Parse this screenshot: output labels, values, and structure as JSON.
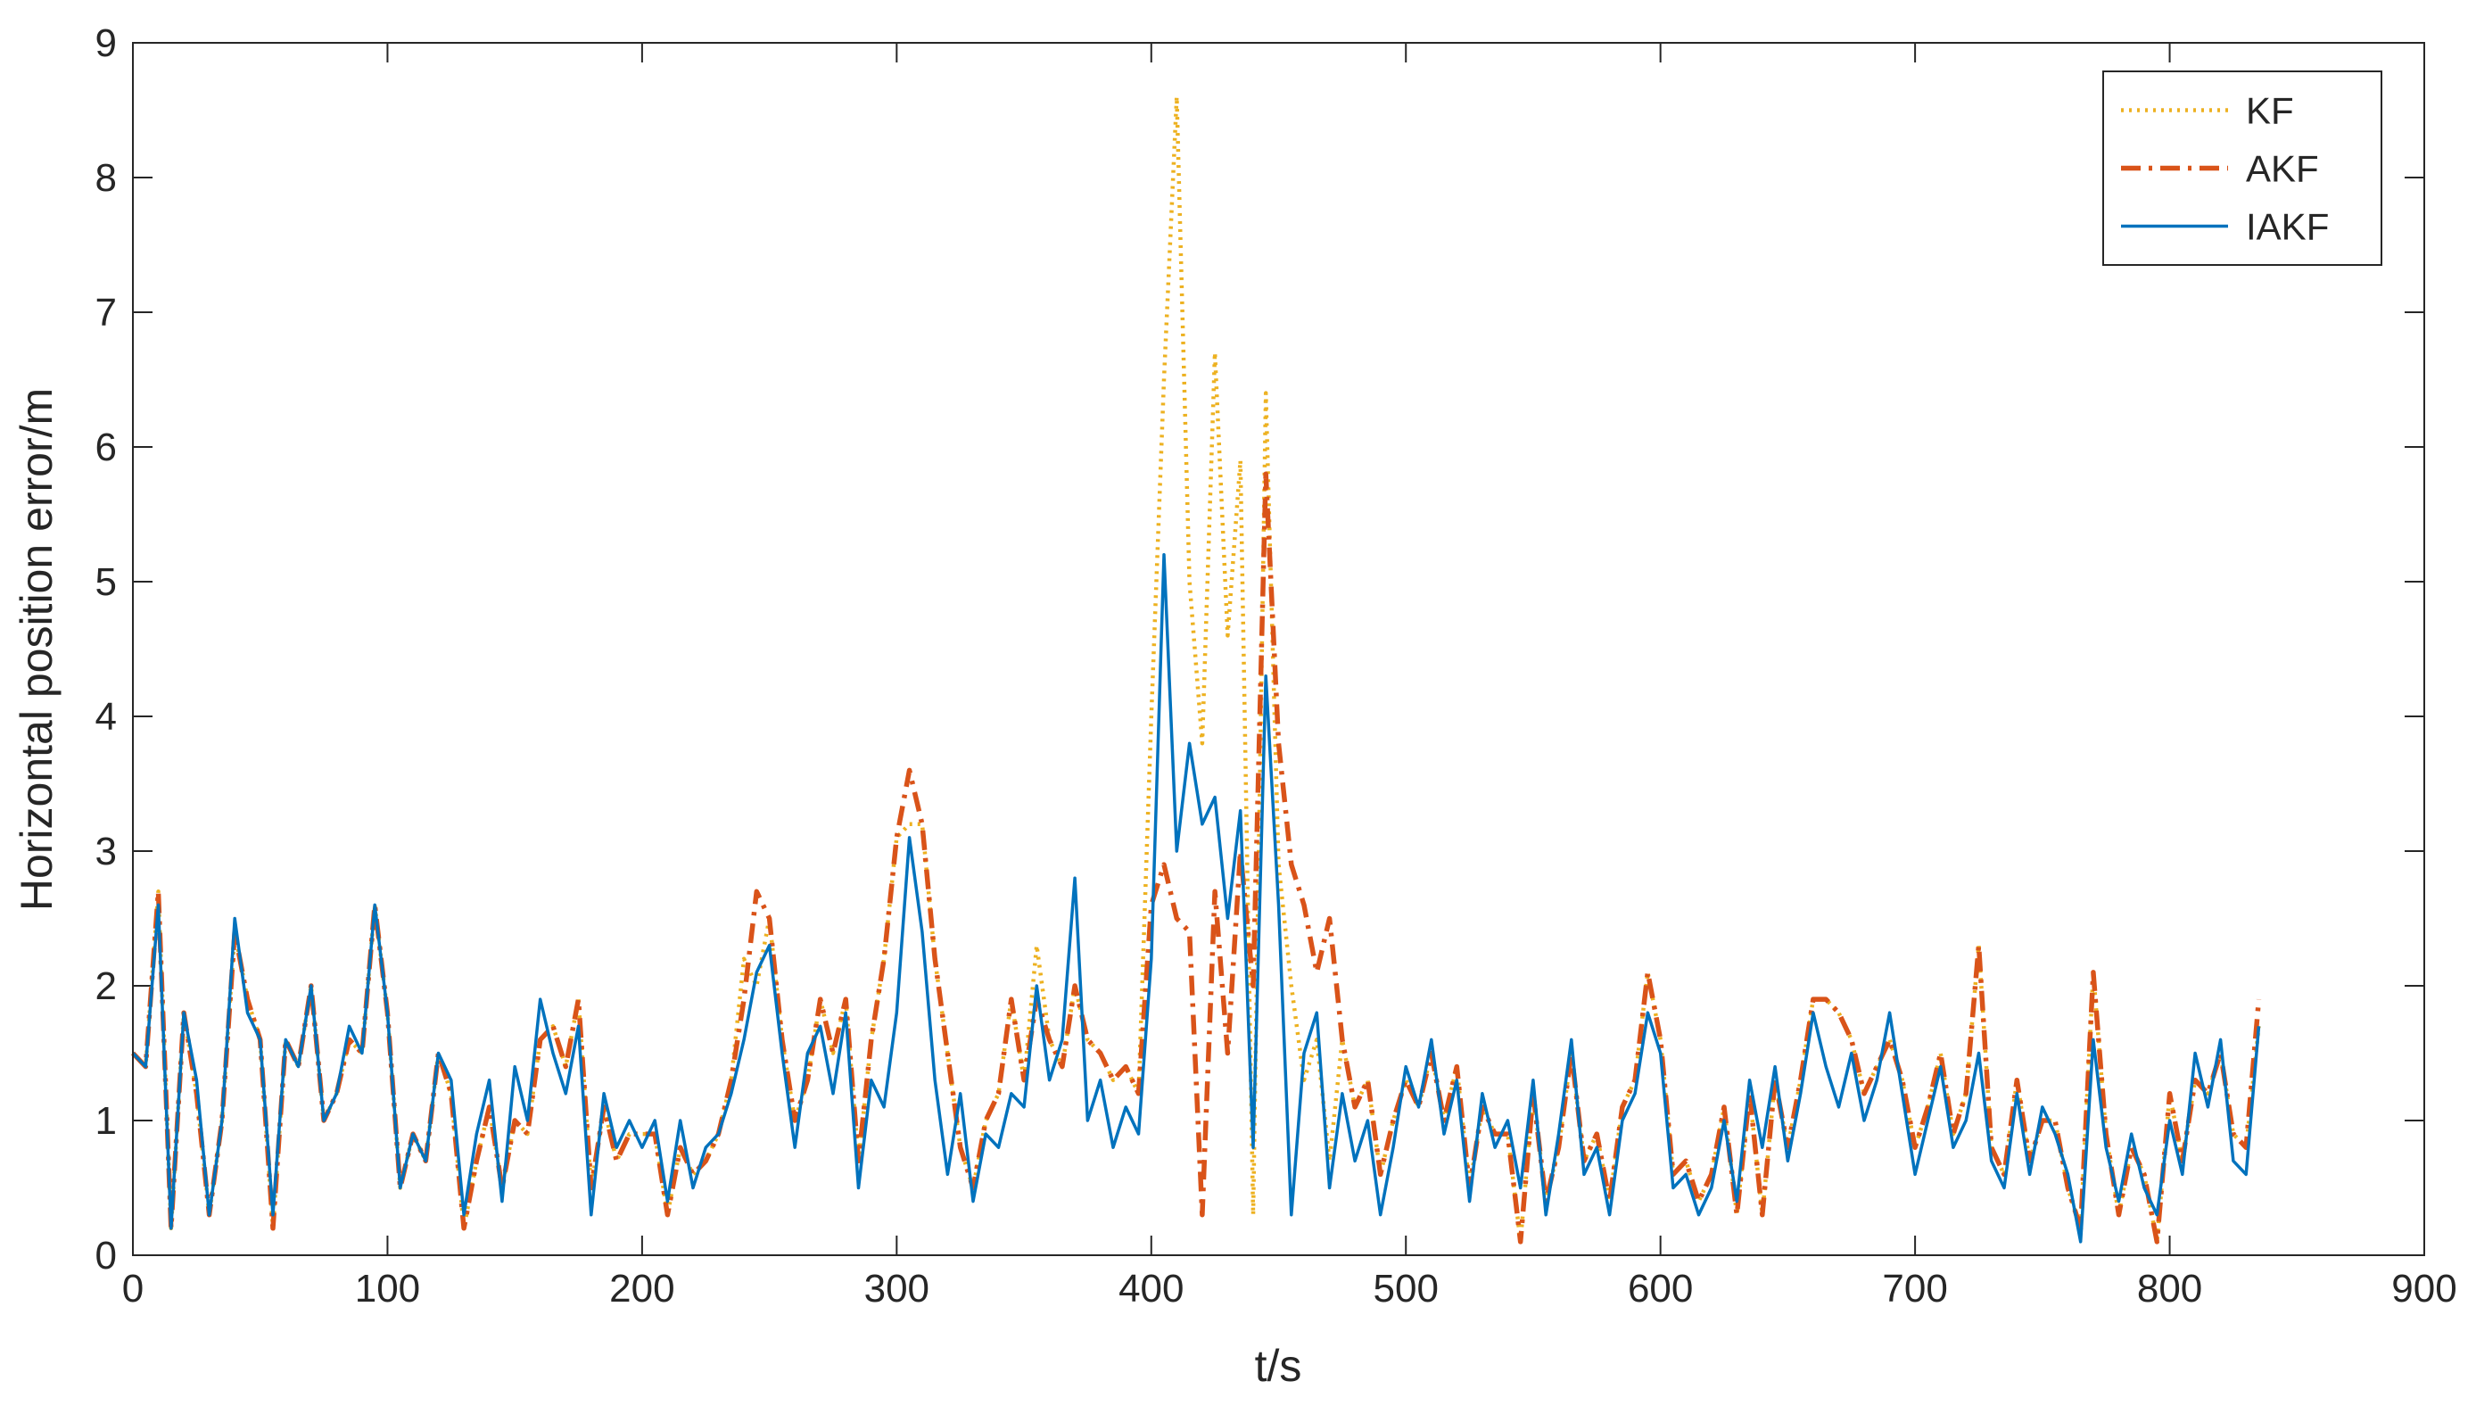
{
  "chart_data": {
    "type": "line",
    "xlabel": "t/s",
    "ylabel": "Horizontal position error/m",
    "xlim": [
      0,
      900
    ],
    "ylim": [
      0,
      9
    ],
    "xticks": [
      0,
      100,
      200,
      300,
      400,
      500,
      600,
      700,
      800,
      900
    ],
    "yticks": [
      0,
      1,
      2,
      3,
      4,
      5,
      6,
      7,
      8,
      9
    ],
    "legend": "top-right",
    "x": [
      0,
      5,
      10,
      15,
      20,
      25,
      30,
      35,
      40,
      45,
      50,
      55,
      60,
      65,
      70,
      75,
      80,
      85,
      90,
      95,
      100,
      105,
      110,
      115,
      120,
      125,
      130,
      135,
      140,
      145,
      150,
      155,
      160,
      165,
      170,
      175,
      180,
      185,
      190,
      195,
      200,
      205,
      210,
      215,
      220,
      225,
      230,
      235,
      240,
      245,
      250,
      255,
      260,
      265,
      270,
      275,
      280,
      285,
      290,
      295,
      300,
      305,
      310,
      315,
      320,
      325,
      330,
      335,
      340,
      345,
      350,
      355,
      360,
      365,
      370,
      375,
      380,
      385,
      390,
      395,
      400,
      405,
      410,
      415,
      420,
      425,
      430,
      435,
      440,
      445,
      450,
      455,
      460,
      465,
      470,
      475,
      480,
      485,
      490,
      495,
      500,
      505,
      510,
      515,
      520,
      525,
      530,
      535,
      540,
      545,
      550,
      555,
      560,
      565,
      570,
      575,
      580,
      585,
      590,
      595,
      600,
      605,
      610,
      615,
      620,
      625,
      630,
      635,
      640,
      645,
      650,
      655,
      660,
      665,
      670,
      675,
      680,
      685,
      690,
      695,
      700,
      705,
      710,
      715,
      720,
      725,
      730,
      735,
      740,
      745,
      750,
      755,
      760,
      765,
      770,
      775,
      780,
      785,
      790,
      795,
      800,
      805,
      810,
      815,
      820,
      825,
      830,
      835
    ],
    "series": [
      {
        "name": "KF",
        "color": "#EDB120",
        "style": "dotted",
        "values": [
          1.5,
          1.4,
          2.7,
          0.2,
          1.8,
          1.2,
          0.3,
          1.0,
          2.4,
          1.9,
          1.6,
          0.2,
          1.6,
          1.4,
          2.0,
          1.0,
          1.2,
          1.6,
          1.5,
          2.6,
          1.8,
          0.5,
          0.9,
          0.7,
          1.5,
          1.2,
          0.2,
          0.7,
          1.1,
          0.5,
          1.0,
          0.9,
          1.6,
          1.7,
          1.4,
          1.9,
          0.5,
          1.1,
          0.7,
          0.9,
          0.9,
          0.9,
          0.3,
          0.8,
          0.6,
          0.7,
          0.9,
          1.3,
          2.2,
          2.0,
          2.5,
          1.6,
          1.0,
          1.3,
          1.9,
          1.5,
          1.9,
          0.7,
          1.6,
          2.2,
          3.1,
          3.2,
          3.2,
          2.2,
          1.5,
          0.8,
          0.5,
          1.0,
          1.2,
          1.9,
          1.3,
          2.3,
          1.6,
          1.4,
          2.0,
          1.6,
          1.5,
          1.3,
          1.4,
          1.2,
          4.0,
          6.5,
          8.6,
          5.0,
          3.8,
          6.7,
          4.6,
          5.9,
          0.3,
          6.4,
          2.9,
          2.0,
          1.3,
          1.6,
          0.7,
          1.6,
          1.1,
          1.3,
          0.6,
          1.0,
          1.3,
          1.1,
          1.5,
          1.0,
          1.4,
          0.5,
          1.1,
          0.9,
          0.9,
          0.1,
          1.2,
          0.4,
          0.8,
          1.5,
          0.7,
          0.9,
          0.4,
          1.1,
          1.3,
          2.1,
          1.6,
          0.6,
          0.7,
          0.4,
          0.6,
          1.1,
          0.3,
          1.2,
          0.3,
          1.3,
          0.8,
          1.3,
          1.9,
          1.9,
          1.8,
          1.6,
          1.2,
          1.4,
          1.6,
          1.3,
          0.8,
          1.1,
          1.5,
          0.9,
          1.2,
          2.3,
          0.8,
          0.6,
          1.3,
          0.7,
          1.0,
          1.0,
          0.5,
          0.2,
          2.1,
          0.9,
          0.3,
          0.8,
          0.6,
          0.1,
          1.2,
          0.7,
          1.3,
          1.2,
          1.5,
          0.9,
          0.8,
          1.7
        ]
      },
      {
        "name": "AKF",
        "color": "#D95319",
        "style": "dashdot",
        "values": [
          1.5,
          1.4,
          2.7,
          0.2,
          1.8,
          1.2,
          0.3,
          1.0,
          2.4,
          1.9,
          1.6,
          0.2,
          1.6,
          1.4,
          2.0,
          1.0,
          1.2,
          1.6,
          1.5,
          2.6,
          1.8,
          0.5,
          0.9,
          0.7,
          1.5,
          1.2,
          0.2,
          0.7,
          1.1,
          0.5,
          1.0,
          0.9,
          1.6,
          1.7,
          1.4,
          1.9,
          0.5,
          1.1,
          0.7,
          0.9,
          0.9,
          0.9,
          0.3,
          0.8,
          0.6,
          0.7,
          0.9,
          1.3,
          1.9,
          2.7,
          2.5,
          1.6,
          1.0,
          1.3,
          1.9,
          1.5,
          1.9,
          0.7,
          1.6,
          2.2,
          3.1,
          3.6,
          3.2,
          2.2,
          1.5,
          0.8,
          0.5,
          1.0,
          1.2,
          1.9,
          1.3,
          1.9,
          1.6,
          1.4,
          2.0,
          1.6,
          1.5,
          1.3,
          1.4,
          1.2,
          2.6,
          2.9,
          2.5,
          2.4,
          0.3,
          2.7,
          1.5,
          3.0,
          2.0,
          5.8,
          3.8,
          2.9,
          2.6,
          2.1,
          2.5,
          1.6,
          1.1,
          1.3,
          0.6,
          1.0,
          1.3,
          1.1,
          1.5,
          1.0,
          1.4,
          0.5,
          1.1,
          0.9,
          0.9,
          0.1,
          1.2,
          0.4,
          0.8,
          1.5,
          0.7,
          0.9,
          0.4,
          1.1,
          1.3,
          2.1,
          1.6,
          0.6,
          0.7,
          0.4,
          0.6,
          1.1,
          0.3,
          1.2,
          0.3,
          1.3,
          0.8,
          1.3,
          1.9,
          1.9,
          1.8,
          1.6,
          1.2,
          1.4,
          1.6,
          1.3,
          0.8,
          1.1,
          1.5,
          0.9,
          1.2,
          2.3,
          0.8,
          0.6,
          1.3,
          0.7,
          1.0,
          1.0,
          0.5,
          0.2,
          2.1,
          0.9,
          0.3,
          0.8,
          0.6,
          0.1,
          1.2,
          0.7,
          1.3,
          1.2,
          1.5,
          0.9,
          0.8,
          1.9
        ]
      },
      {
        "name": "IAKF",
        "color": "#0072BD",
        "style": "solid",
        "values": [
          1.5,
          1.4,
          2.6,
          0.2,
          1.8,
          1.3,
          0.3,
          1.0,
          2.5,
          1.8,
          1.6,
          0.3,
          1.6,
          1.4,
          2.0,
          1.0,
          1.2,
          1.7,
          1.5,
          2.6,
          1.8,
          0.5,
          0.9,
          0.7,
          1.5,
          1.3,
          0.3,
          0.9,
          1.3,
          0.4,
          1.4,
          1.0,
          1.9,
          1.5,
          1.2,
          1.7,
          0.3,
          1.2,
          0.8,
          1.0,
          0.8,
          1.0,
          0.4,
          1.0,
          0.5,
          0.8,
          0.9,
          1.2,
          1.6,
          2.1,
          2.3,
          1.5,
          0.8,
          1.5,
          1.7,
          1.2,
          1.8,
          0.5,
          1.3,
          1.1,
          1.8,
          3.1,
          2.4,
          1.3,
          0.6,
          1.2,
          0.4,
          0.9,
          0.8,
          1.2,
          1.1,
          2.0,
          1.3,
          1.6,
          2.8,
          1.0,
          1.3,
          0.8,
          1.1,
          0.9,
          2.2,
          5.2,
          3.0,
          3.8,
          3.2,
          3.4,
          2.5,
          3.3,
          0.8,
          4.3,
          2.6,
          0.3,
          1.5,
          1.8,
          0.5,
          1.2,
          0.7,
          1.0,
          0.3,
          0.8,
          1.4,
          1.1,
          1.6,
          0.9,
          1.3,
          0.4,
          1.2,
          0.8,
          1.0,
          0.5,
          1.3,
          0.3,
          0.9,
          1.6,
          0.6,
          0.8,
          0.3,
          1.0,
          1.2,
          1.8,
          1.5,
          0.5,
          0.6,
          0.3,
          0.5,
          1.0,
          0.4,
          1.3,
          0.8,
          1.4,
          0.7,
          1.2,
          1.8,
          1.4,
          1.1,
          1.5,
          1.0,
          1.3,
          1.8,
          1.2,
          0.6,
          1.0,
          1.4,
          0.8,
          1.0,
          1.5,
          0.7,
          0.5,
          1.2,
          0.6,
          1.1,
          0.9,
          0.6,
          0.1,
          1.6,
          0.8,
          0.4,
          0.9,
          0.5,
          0.3,
          1.0,
          0.6,
          1.5,
          1.1,
          1.6,
          0.7,
          0.6,
          1.7
        ]
      }
    ]
  }
}
